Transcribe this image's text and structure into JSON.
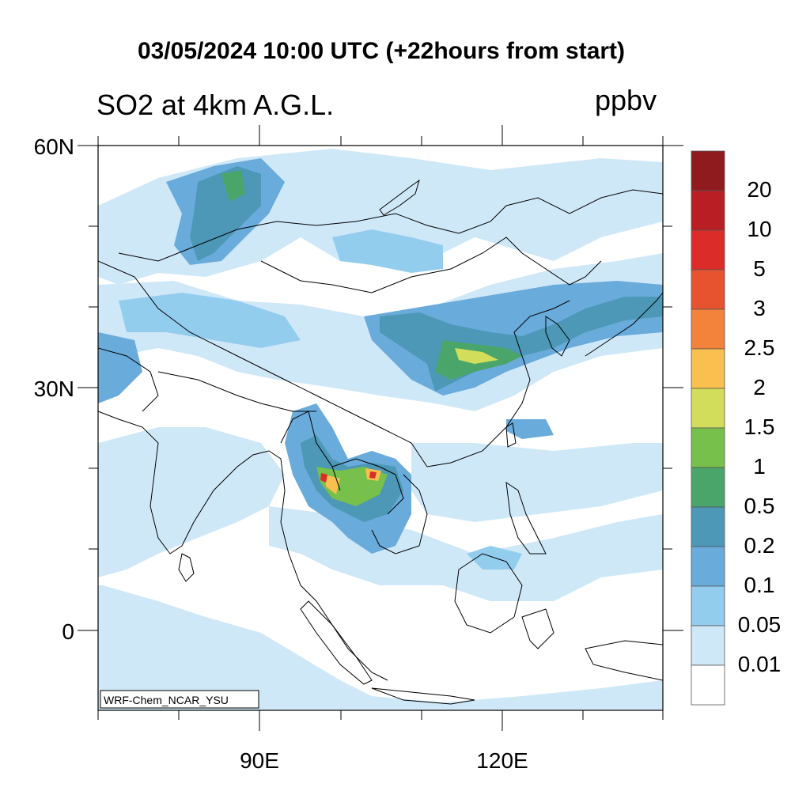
{
  "title": "03/05/2024 10:00 UTC (+22hours from start)",
  "subtitle": "SO2 at 4km A.G.L.",
  "units": "ppbv",
  "credit": "WRF-Chem_NCAR_YSU",
  "lat_labels": [
    "60N",
    "30N",
    "0"
  ],
  "lon_labels": [
    "90E",
    "120E"
  ],
  "legend": {
    "thresholds": [
      "20",
      "10",
      "5",
      "3",
      "2.5",
      "2",
      "1.5",
      "1",
      "0.5",
      "0.2",
      "0.1",
      "0.05",
      "0.01"
    ],
    "colors": [
      "#8f1b1e",
      "#b81e24",
      "#dc2c2a",
      "#e8532f",
      "#f3823a",
      "#f9c04f",
      "#d2dd5b",
      "#77c04b",
      "#4aa56a",
      "#4c98b6",
      "#69abdb",
      "#93cdee",
      "#cfe8f8",
      "#ffffff"
    ]
  }
}
